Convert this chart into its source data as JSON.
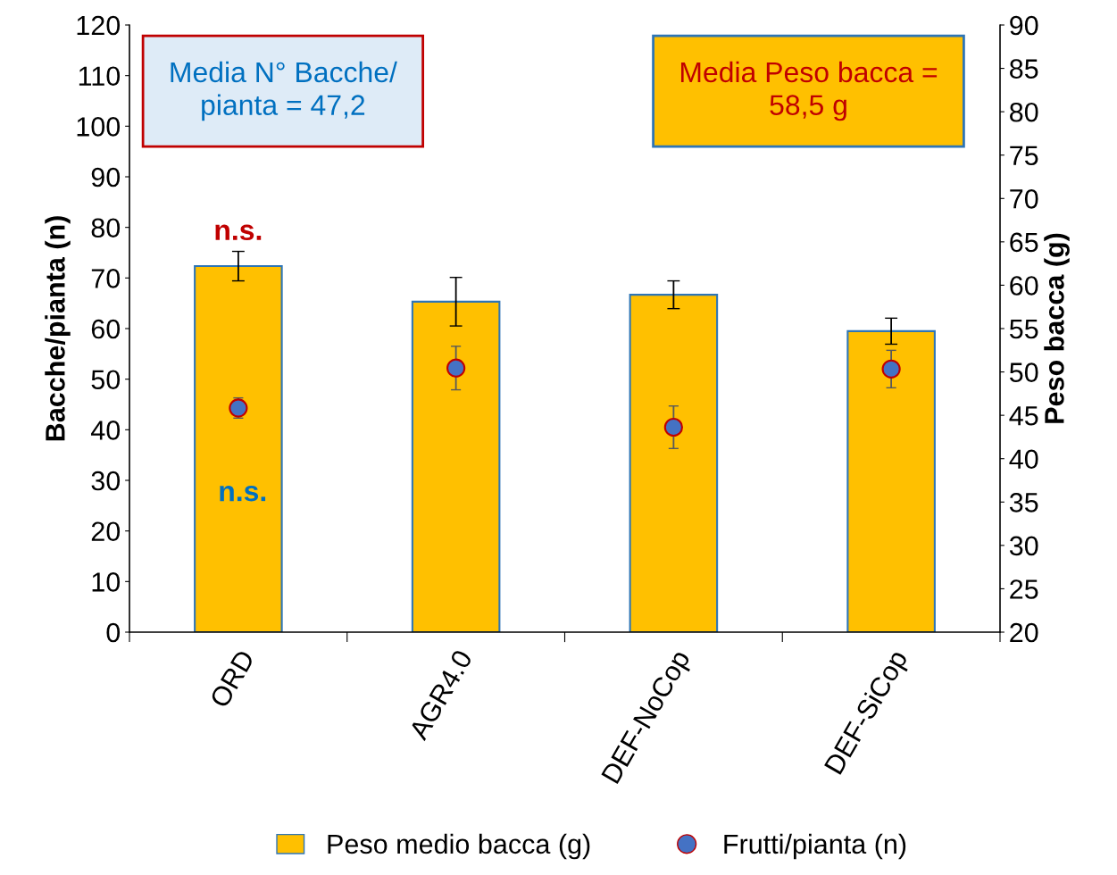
{
  "chart_data": {
    "type": "bar",
    "categories": [
      "ORD",
      "AGR4.0",
      "DEF-NoCop",
      "DEF-SiCop"
    ],
    "ylabel": "Bacche/pianta (n)",
    "y2label": "Peso bacca (g)",
    "ylim": [
      0,
      120
    ],
    "yticks": [
      0,
      10,
      20,
      30,
      40,
      50,
      60,
      70,
      80,
      90,
      100,
      110,
      120
    ],
    "y2lim": [
      20,
      90
    ],
    "y2ticks": [
      20,
      25,
      30,
      35,
      40,
      45,
      50,
      55,
      60,
      65,
      70,
      75,
      80,
      85,
      90
    ],
    "series": [
      {
        "name": "Peso medio bacca (g)",
        "axis": "y2",
        "color": "#ffc000",
        "values": [
          62.2,
          58.1,
          58.9,
          54.7
        ],
        "errors": [
          1.7,
          2.8,
          1.6,
          1.5
        ]
      },
      {
        "name": "Frutti/pianta (n)",
        "type": "scatter",
        "color": "#4472c4",
        "values": [
          44.3,
          52.2,
          40.5,
          52.0
        ],
        "errors": [
          2.0,
          4.3,
          4.2,
          3.7
        ]
      }
    ],
    "annotations": [
      "Media N° Bacche/\npianta = 47,2",
      "Media Peso bacca =\n58,5 g",
      "n.s.",
      "n.s."
    ],
    "marker": "circle",
    "legend": "bottom",
    "grid": false
  }
}
